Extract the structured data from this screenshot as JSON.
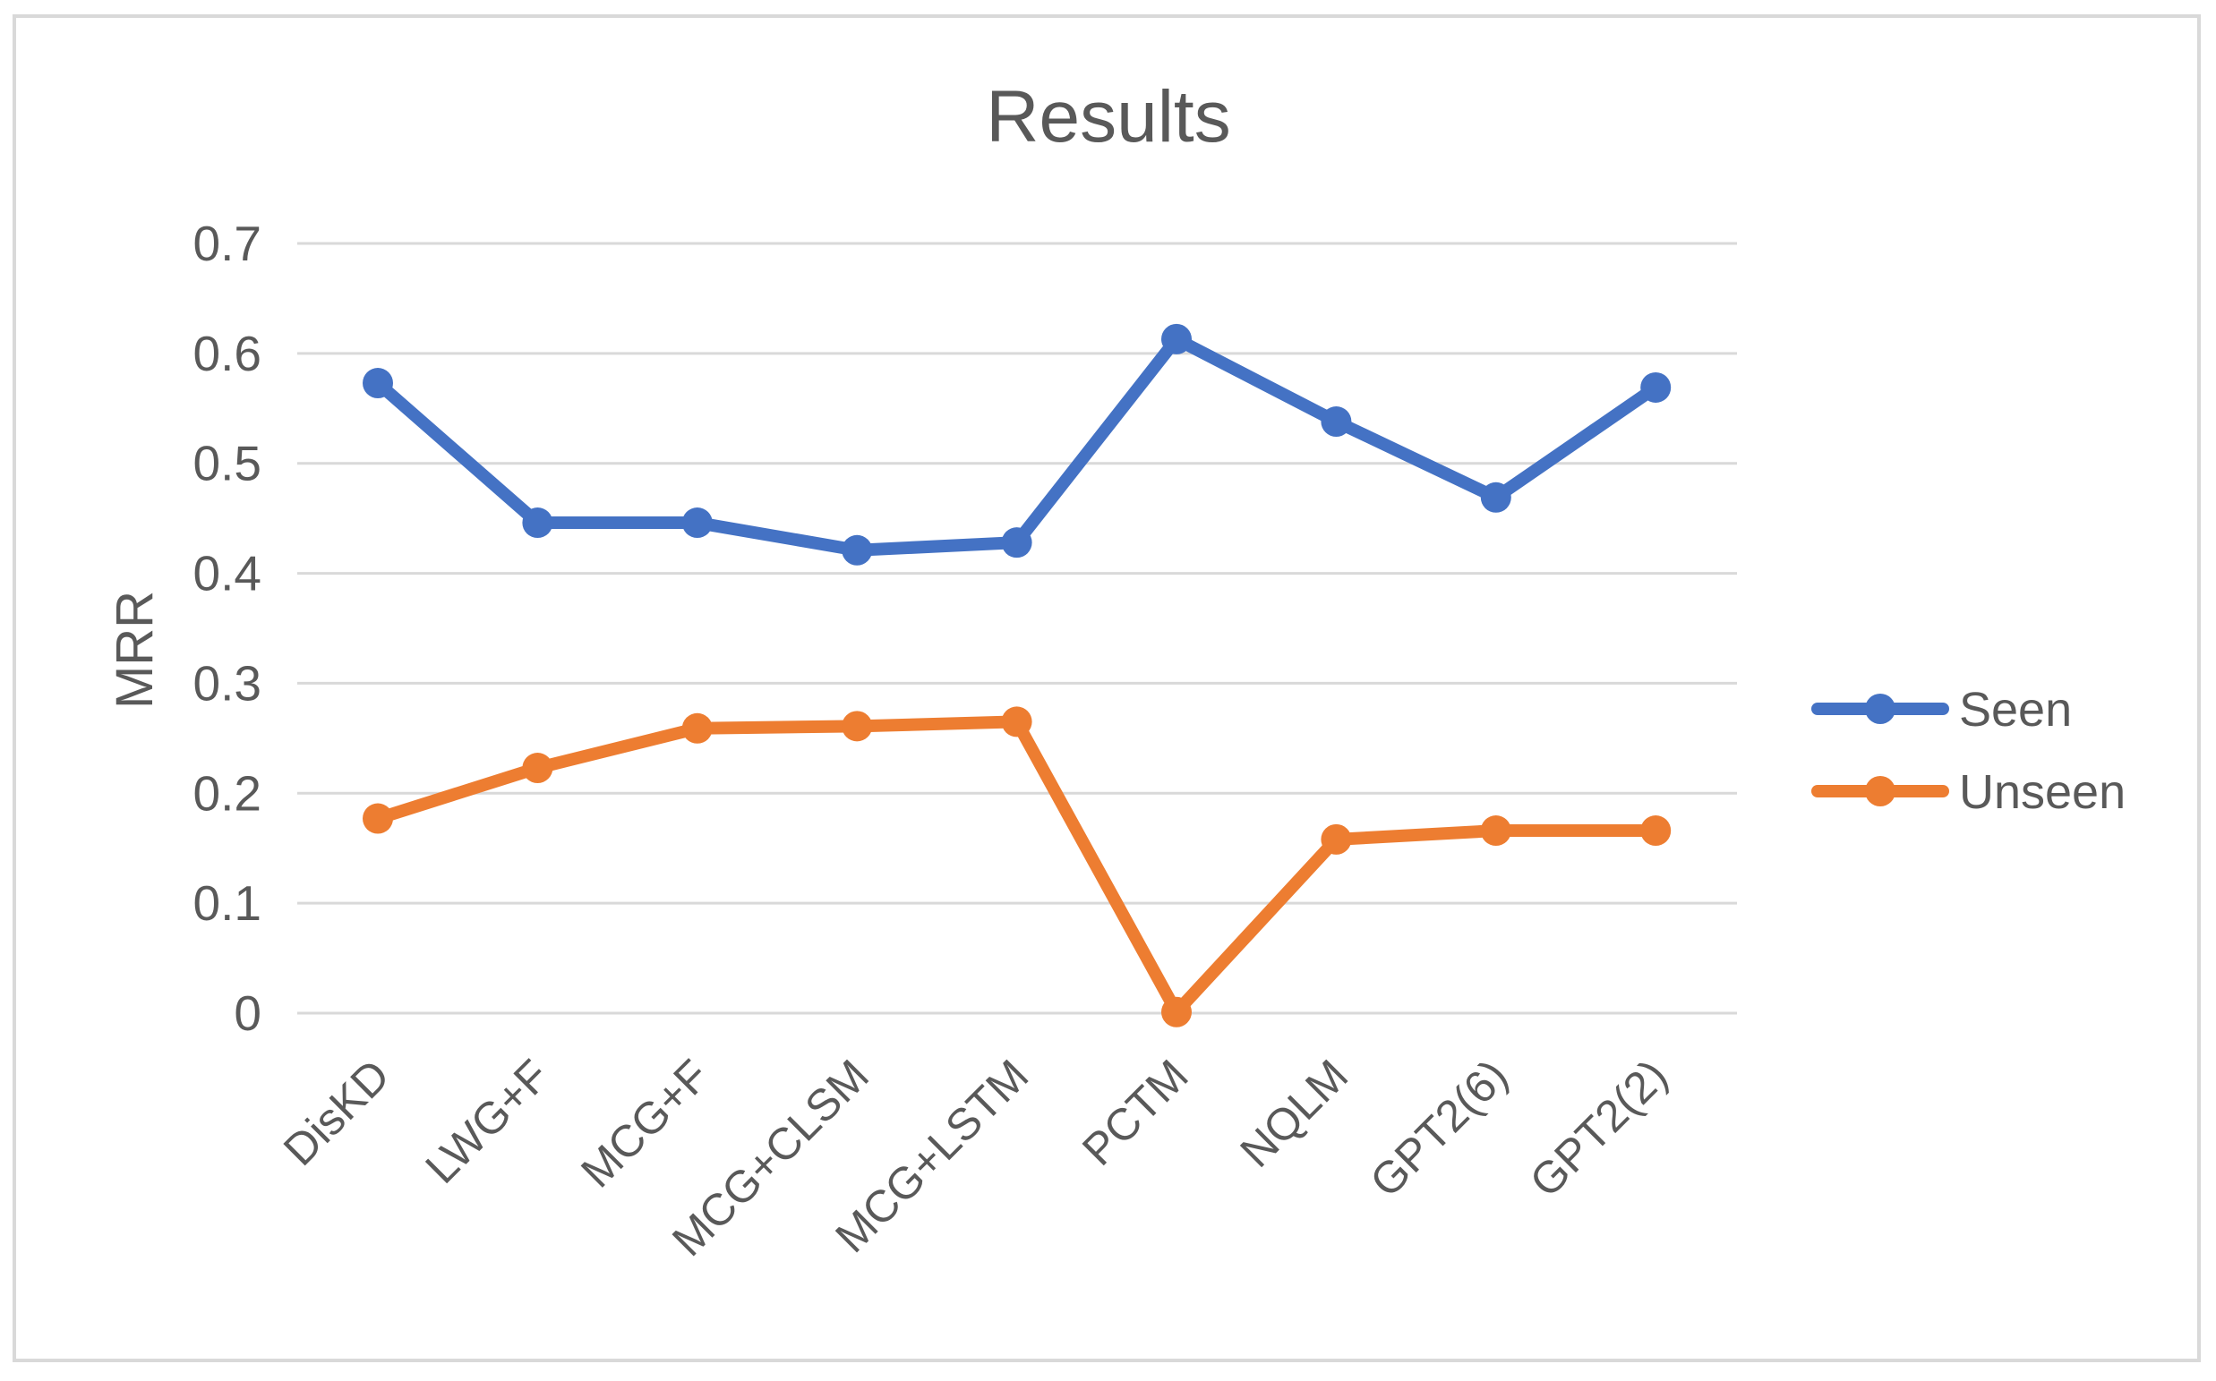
{
  "chart_data": {
    "type": "line",
    "title": "Results",
    "xlabel": "",
    "ylabel": "MRR",
    "ylim": [
      0,
      0.7
    ],
    "yticks": [
      "0",
      "0.1",
      "0.2",
      "0.3",
      "0.4",
      "0.5",
      "0.6",
      "0.7"
    ],
    "grid": true,
    "legend_position": "right",
    "categories": [
      "DisKD",
      "LWG+F",
      "MCG+F",
      "MCG+CLSM",
      "MCG+LSTM",
      "PCTM",
      "NQLM",
      "GPT2(6)",
      "GPT2(2)"
    ],
    "series": [
      {
        "name": "Seen",
        "color": "#4472c4",
        "values": [
          0.573,
          0.446,
          0.446,
          0.421,
          0.428,
          0.613,
          0.538,
          0.469,
          0.569
        ]
      },
      {
        "name": "Unseen",
        "color": "#ed7d31",
        "values": [
          0.177,
          0.223,
          0.259,
          0.261,
          0.265,
          0.001,
          0.158,
          0.166,
          0.166
        ]
      }
    ]
  }
}
